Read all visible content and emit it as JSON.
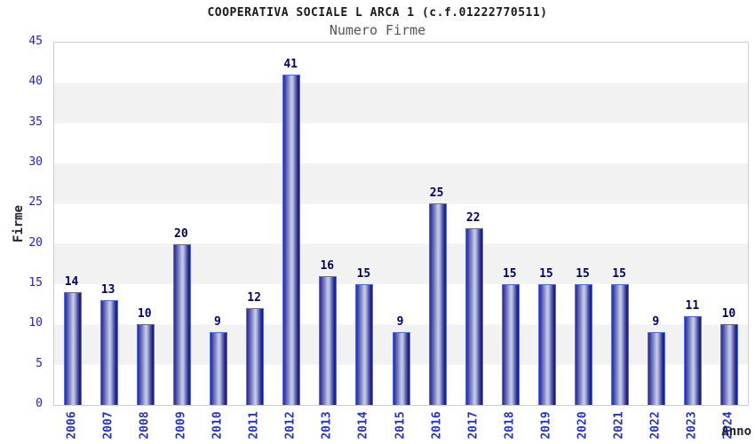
{
  "header": {
    "title": "COOPERATIVA SOCIALE L ARCA 1 (c.f.01222770511)",
    "subtitle": "Numero Firme"
  },
  "chart_data": {
    "type": "bar",
    "title": "COOPERATIVA SOCIALE L ARCA 1 (c.f.01222770511)",
    "subtitle": "Numero Firme",
    "xlabel": "Anno",
    "ylabel": "Firme",
    "categories": [
      "2006",
      "2007",
      "2008",
      "2009",
      "2010",
      "2011",
      "2012",
      "2013",
      "2014",
      "2015",
      "2016",
      "2017",
      "2018",
      "2019",
      "2020",
      "2021",
      "2022",
      "2023",
      "2024"
    ],
    "values": [
      14,
      13,
      10,
      20,
      9,
      12,
      41,
      16,
      15,
      9,
      25,
      22,
      15,
      15,
      15,
      15,
      9,
      11,
      10
    ],
    "ylim": [
      0,
      45
    ],
    "ytick_step": 5,
    "yticks": [
      0,
      5,
      10,
      15,
      20,
      25,
      30,
      35,
      40,
      45
    ],
    "grid": "alternating-horizontal-bands",
    "legend": "none",
    "colors": {
      "bar_dark": "#2f2f99",
      "bar_highlight": "#c9cfe9",
      "bar_border": "#4f6cf0",
      "tick_label": "#2222cc",
      "value_label": "#000066",
      "axis_title": "#222233",
      "title_text": "#1a1a1a",
      "subtitle_text": "#555555",
      "band_gray": "#f2f2f2",
      "plot_border": "#cccccc"
    }
  }
}
